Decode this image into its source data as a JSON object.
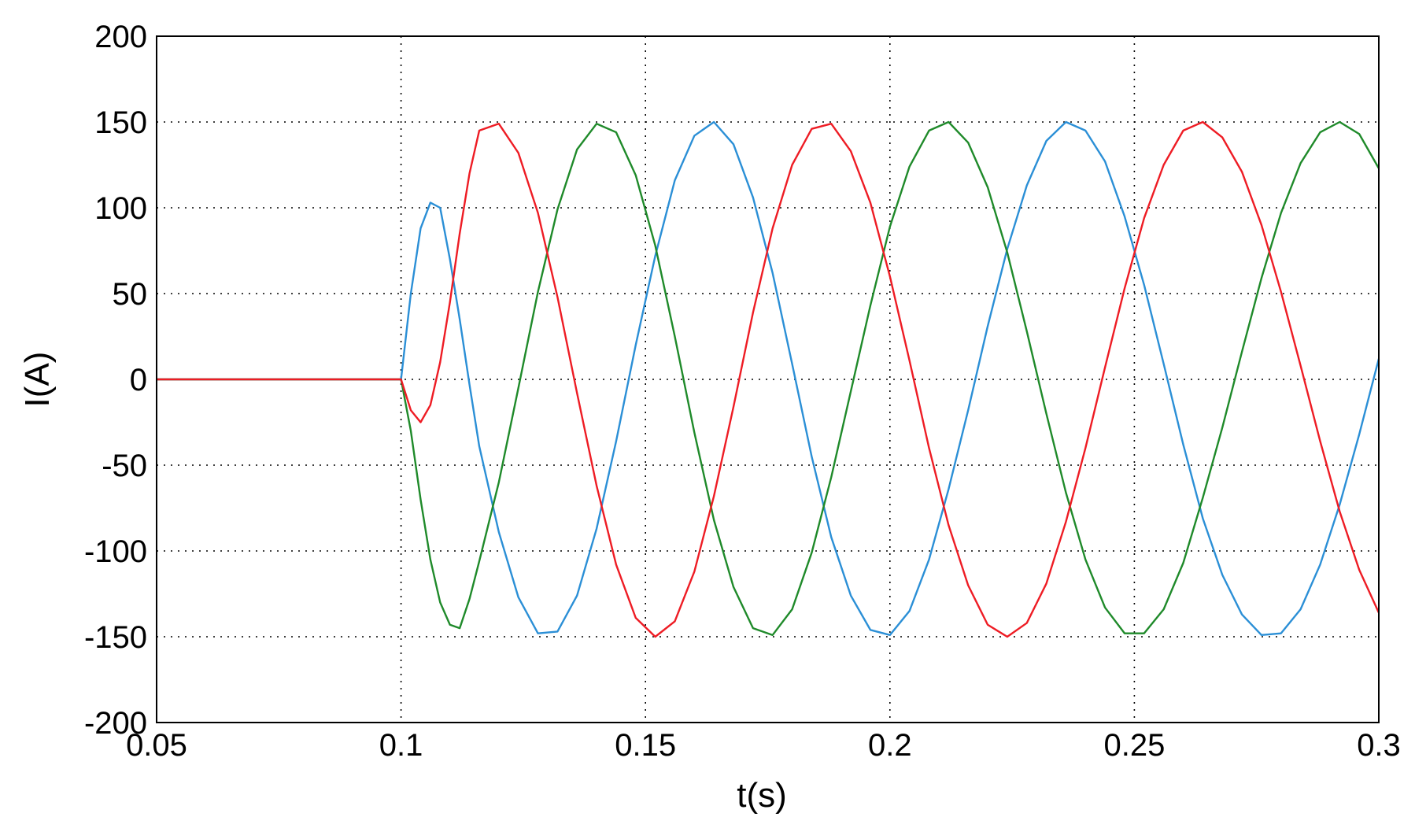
{
  "chart_data": {
    "type": "line",
    "xlabel": "t(s)",
    "ylabel": "I(A)",
    "x": [
      0.05,
      0.1,
      0.102,
      0.104,
      0.106,
      0.108,
      0.11,
      0.112,
      0.114,
      0.116,
      0.12,
      0.124,
      0.128,
      0.132,
      0.136,
      0.14,
      0.144,
      0.148,
      0.152,
      0.156,
      0.16,
      0.164,
      0.168,
      0.172,
      0.176,
      0.18,
      0.184,
      0.188,
      0.192,
      0.196,
      0.2,
      0.204,
      0.208,
      0.212,
      0.216,
      0.22,
      0.224,
      0.228,
      0.232,
      0.236,
      0.24,
      0.244,
      0.248,
      0.252,
      0.256,
      0.26,
      0.264,
      0.268,
      0.272,
      0.276,
      0.28,
      0.284,
      0.288,
      0.292,
      0.296,
      0.3
    ],
    "series": [
      {
        "color": "#ee1c24",
        "values": [
          0,
          0,
          -18,
          -25,
          -15,
          10,
          45,
          85,
          120,
          145,
          149,
          132,
          97,
          48,
          -8,
          -62,
          -108,
          -139,
          -150,
          -141,
          -112,
          -68,
          -16,
          39,
          88,
          125,
          146,
          149,
          133,
          103,
          60,
          11,
          -40,
          -85,
          -120,
          -143,
          -150,
          -142,
          -119,
          -83,
          -40,
          7,
          53,
          94,
          125,
          145,
          150,
          141,
          121,
          90,
          51,
          8,
          -36,
          -77,
          -111,
          -136
        ]
      },
      {
        "color": "#1f8a2a",
        "values": [
          0,
          0,
          -30,
          -70,
          -105,
          -130,
          -143,
          -145,
          -128,
          -106,
          -60,
          -5,
          51,
          99,
          134,
          149,
          144,
          119,
          78,
          25,
          -31,
          -82,
          -121,
          -145,
          -149,
          -134,
          -101,
          -57,
          -7,
          43,
          89,
          124,
          145,
          150,
          138,
          112,
          74,
          28,
          -20,
          -66,
          -105,
          -133,
          -148,
          -148,
          -134,
          -107,
          -69,
          -28,
          16,
          59,
          97,
          126,
          144,
          150,
          143,
          123
        ]
      },
      {
        "color": "#2b8fd6",
        "values": [
          0,
          0,
          50,
          88,
          103,
          100,
          70,
          35,
          -3,
          -39,
          -89,
          -127,
          -148,
          -147,
          -126,
          -87,
          -36,
          20,
          72,
          116,
          142,
          150,
          137,
          106,
          62,
          9,
          -45,
          -92,
          -126,
          -146,
          -149,
          -135,
          -105,
          -64,
          -18,
          31,
          76,
          113,
          139,
          150,
          145,
          127,
          95,
          55,
          9,
          -38,
          -81,
          -114,
          -137,
          -149,
          -148,
          -134,
          -108,
          -73,
          -32,
          12
        ]
      }
    ],
    "xlim": [
      0.05,
      0.3
    ],
    "ylim": [
      -200,
      200
    ],
    "xticks": [
      0.05,
      0.1,
      0.15,
      0.2,
      0.25,
      0.3
    ],
    "yticks": [
      -200,
      -150,
      -100,
      -50,
      0,
      50,
      100,
      150,
      200
    ],
    "grid": true
  }
}
